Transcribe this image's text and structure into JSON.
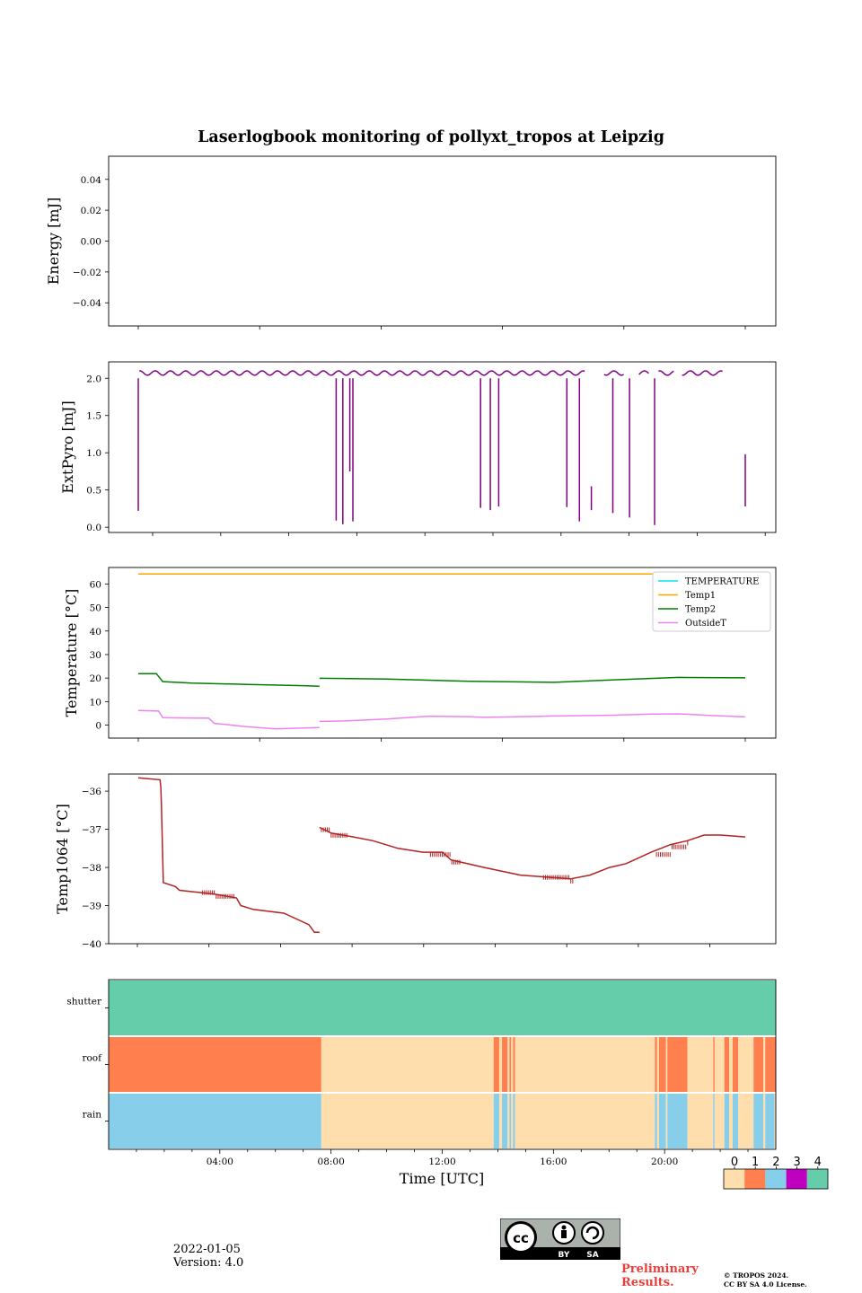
{
  "chart_data": {
    "type": "multi-panel time series",
    "title": "Laserlogbook monitoring of pollyxt_tropos at Leipzig",
    "xlabel": "Time [UTC]",
    "x_tick_labels": [
      "04:00",
      "08:00",
      "12:00",
      "16:00",
      "20:00"
    ],
    "x_unit": "hours UTC",
    "panels": [
      {
        "id": "energy",
        "ylabel": "Energy [mJ]",
        "ylim": [
          -0.055,
          0.055
        ],
        "yticks": [
          -0.04,
          -0.02,
          0.0,
          0.02,
          0.04
        ],
        "ytick_labels": [
          "−0.04",
          "−0.02",
          "0.00",
          "0.02",
          "0.04"
        ],
        "series": []
      },
      {
        "id": "extpyro",
        "ylabel": "ExtPyro [mJ]",
        "ylim": [
          -0.07,
          2.22
        ],
        "yticks": [
          0.0,
          0.5,
          1.0,
          1.5,
          2.0
        ],
        "ytick_labels": [
          "0.0",
          "0.5",
          "1.0",
          "1.5",
          "2.0"
        ],
        "series": [
          {
            "name": "ExtPyro",
            "color": "#800080",
            "base_level": 2.07,
            "start_hour": 1.07,
            "end_hour": 22.88,
            "gaps_hours": [
              [
                17.13,
                17.78
              ],
              [
                18.53,
                18.72
              ],
              [
                18.72,
                19.02
              ],
              [
                19.45,
                19.73
              ],
              [
                20.33,
                20.57
              ]
            ],
            "dips": [
              {
                "hour": 1.07,
                "low": 0.22
              },
              {
                "hour": 8.18,
                "low": 0.09
              },
              {
                "hour": 8.42,
                "low": 0.04
              },
              {
                "hour": 8.67,
                "low": 0.75
              },
              {
                "hour": 8.78,
                "low": 0.08
              },
              {
                "hour": 13.37,
                "low": 0.26
              },
              {
                "hour": 13.72,
                "low": 0.23
              },
              {
                "hour": 14.02,
                "low": 0.28
              },
              {
                "hour": 16.47,
                "low": 0.27
              },
              {
                "hour": 16.92,
                "low": 0.08
              },
              {
                "hour": 18.12,
                "low": 0.19
              },
              {
                "hour": 18.72,
                "low": 0.13
              },
              {
                "hour": 19.62,
                "low": 0.03
              }
            ],
            "isolated": [
              {
                "hour": 17.35,
                "from": 0.55,
                "to": 0.23
              },
              {
                "hour": 22.88,
                "from": 0.98,
                "to": 0.28
              }
            ]
          }
        ]
      },
      {
        "id": "temperature",
        "ylabel": "Temperature [°C]",
        "ylim": [
          -5.5,
          67
        ],
        "yticks": [
          0,
          10,
          20,
          30,
          40,
          50,
          60
        ],
        "ytick_labels": [
          "0",
          "10",
          "20",
          "30",
          "40",
          "50",
          "60"
        ],
        "legend_location": "top-right",
        "series": [
          {
            "name": "TEMPERATURE",
            "color": "#00e5e5",
            "points": []
          },
          {
            "name": "Temp1",
            "color": "#ffa500",
            "points": [
              [
                1.07,
                64.2
              ],
              [
                22.88,
                64.2
              ]
            ]
          },
          {
            "name": "Temp2",
            "color": "#008000",
            "points": [
              [
                1.07,
                21.9
              ],
              [
                1.72,
                21.9
              ],
              [
                1.95,
                18.5
              ],
              [
                3.0,
                17.9
              ],
              [
                5.0,
                17.3
              ],
              [
                7.0,
                16.8
              ],
              [
                7.58,
                16.5
              ],
              null,
              [
                7.58,
                19.9
              ],
              [
                10.0,
                19.6
              ],
              [
                13.0,
                18.6
              ],
              [
                16.0,
                18.2
              ],
              [
                18.5,
                19.4
              ],
              [
                20.5,
                20.3
              ],
              [
                22.88,
                20.1
              ]
            ]
          },
          {
            "name": "OutsideT",
            "color": "#ee82ee",
            "points": [
              [
                1.07,
                6.2
              ],
              [
                1.8,
                6.0
              ],
              [
                1.95,
                3.2
              ],
              [
                3.2,
                3.0
              ],
              [
                3.6,
                3.0
              ],
              [
                3.8,
                0.8
              ],
              [
                4.8,
                -0.5
              ],
              [
                6.0,
                -1.6
              ],
              [
                7.0,
                -1.2
              ],
              [
                7.58,
                -1.0
              ],
              null,
              [
                7.58,
                1.6
              ],
              [
                8.5,
                1.8
              ],
              [
                10.0,
                2.6
              ],
              [
                11.5,
                3.8
              ],
              [
                13.0,
                3.6
              ],
              [
                13.5,
                3.3
              ],
              [
                14.5,
                3.5
              ],
              [
                16.0,
                3.9
              ],
              [
                18.0,
                4.2
              ],
              [
                19.5,
                4.7
              ],
              [
                20.5,
                4.8
              ],
              [
                21.5,
                4.2
              ],
              [
                22.88,
                3.5
              ]
            ]
          }
        ]
      },
      {
        "id": "temp1064",
        "ylabel": "Temp1064 [°C]",
        "ylim": [
          -40,
          -35.55
        ],
        "yticks": [
          -40,
          -39,
          -38,
          -37,
          -36
        ],
        "ytick_labels": [
          "−40",
          "−39",
          "−38",
          "−37",
          "−36"
        ],
        "series": [
          {
            "name": "Temp1064",
            "color": "#b22222",
            "points": [
              [
                1.07,
                -35.65
              ],
              [
                1.85,
                -35.7
              ],
              [
                1.88,
                -35.9
              ],
              [
                1.9,
                -36.3
              ],
              [
                1.97,
                -38.4
              ],
              [
                2.4,
                -38.5
              ],
              [
                2.55,
                -38.6
              ],
              [
                3.8,
                -38.7
              ],
              [
                4.6,
                -38.8
              ],
              [
                4.75,
                -39.0
              ],
              [
                5.2,
                -39.1
              ],
              [
                6.3,
                -39.2
              ],
              [
                6.9,
                -39.4
              ],
              [
                7.2,
                -39.5
              ],
              [
                7.4,
                -39.7
              ],
              [
                7.58,
                -39.7
              ],
              null,
              [
                7.58,
                -36.95
              ],
              [
                8.0,
                -37.1
              ],
              [
                8.8,
                -37.2
              ],
              [
                9.5,
                -37.3
              ],
              [
                10.4,
                -37.5
              ],
              [
                11.3,
                -37.6
              ],
              [
                12.0,
                -37.6
              ],
              [
                12.3,
                -37.8
              ],
              [
                13.5,
                -38.0
              ],
              [
                14.8,
                -38.2
              ],
              [
                16.6,
                -38.3
              ],
              [
                17.3,
                -38.2
              ],
              [
                18.0,
                -38.0
              ],
              [
                18.6,
                -37.9
              ],
              [
                19.5,
                -37.6
              ],
              [
                20.2,
                -37.4
              ],
              [
                20.8,
                -37.3
              ],
              [
                21.4,
                -37.15
              ],
              [
                22.0,
                -37.15
              ],
              [
                22.88,
                -37.2
              ]
            ]
          }
        ]
      },
      {
        "id": "status",
        "type": "status-heatmap",
        "rows": [
          "shutter",
          "roof",
          "rain"
        ],
        "states": [
          0,
          1,
          2,
          3,
          4
        ],
        "state_colors": [
          "#fddeac",
          "#ff7f4e",
          "#87ceeb",
          "#c000c0",
          "#66cdaa"
        ],
        "row_segments": {
          "shutter": [
            [
              0,
              24,
              4
            ]
          ],
          "roof": [
            [
              0,
              7.65,
              1
            ],
            [
              7.65,
              13.85,
              0
            ],
            [
              13.85,
              14.05,
              1
            ],
            [
              14.05,
              14.15,
              0
            ],
            [
              14.15,
              14.35,
              1
            ],
            [
              14.35,
              14.42,
              0
            ],
            [
              14.42,
              14.48,
              1
            ],
            [
              14.48,
              14.55,
              0
            ],
            [
              14.55,
              14.62,
              1
            ],
            [
              14.62,
              19.65,
              0
            ],
            [
              19.65,
              19.73,
              1
            ],
            [
              19.73,
              19.8,
              0
            ],
            [
              19.8,
              20.05,
              1
            ],
            [
              20.05,
              20.1,
              0
            ],
            [
              20.1,
              20.82,
              1
            ],
            [
              20.82,
              21.75,
              0
            ],
            [
              21.75,
              21.8,
              1
            ],
            [
              21.8,
              22.15,
              0
            ],
            [
              22.15,
              22.32,
              1
            ],
            [
              22.32,
              22.45,
              0
            ],
            [
              22.45,
              22.65,
              1
            ],
            [
              22.65,
              23.2,
              0
            ],
            [
              23.2,
              23.55,
              1
            ],
            [
              23.55,
              23.62,
              0
            ],
            [
              23.62,
              24,
              1
            ]
          ],
          "rain": [
            [
              0,
              7.65,
              2
            ],
            [
              7.65,
              13.85,
              0
            ],
            [
              13.85,
              14.05,
              2
            ],
            [
              14.05,
              14.15,
              0
            ],
            [
              14.15,
              14.35,
              2
            ],
            [
              14.35,
              14.42,
              0
            ],
            [
              14.42,
              14.48,
              2
            ],
            [
              14.48,
              14.55,
              0
            ],
            [
              14.55,
              14.62,
              2
            ],
            [
              14.62,
              19.65,
              0
            ],
            [
              19.65,
              19.73,
              2
            ],
            [
              19.73,
              19.8,
              0
            ],
            [
              19.8,
              20.05,
              2
            ],
            [
              20.05,
              20.1,
              0
            ],
            [
              20.1,
              20.82,
              2
            ],
            [
              20.82,
              21.75,
              0
            ],
            [
              21.75,
              21.8,
              2
            ],
            [
              21.8,
              22.15,
              0
            ],
            [
              22.15,
              22.32,
              2
            ],
            [
              22.32,
              22.45,
              0
            ],
            [
              22.45,
              22.65,
              2
            ],
            [
              22.65,
              23.2,
              0
            ],
            [
              23.2,
              23.55,
              2
            ],
            [
              23.55,
              23.62,
              0
            ],
            [
              23.62,
              23.95,
              2
            ],
            [
              23.95,
              24,
              0
            ]
          ]
        }
      }
    ],
    "legend": {
      "labels": [
        "TEMPERATURE",
        "Temp1",
        "Temp2",
        "OutsideT"
      ]
    },
    "colorbar": {
      "tick_labels": [
        "0",
        "1",
        "2",
        "3",
        "4"
      ]
    }
  },
  "footer": {
    "date": "2022-01-05",
    "version": "Version: 4.0",
    "preliminary_line1": "Preliminary",
    "preliminary_line2": "Results.",
    "copyright_line1": "© TROPOS 2024.",
    "copyright_line2": "CC BY SA 4.0 License.",
    "cc_badge_by": "BY",
    "cc_badge_sa": "SA"
  }
}
